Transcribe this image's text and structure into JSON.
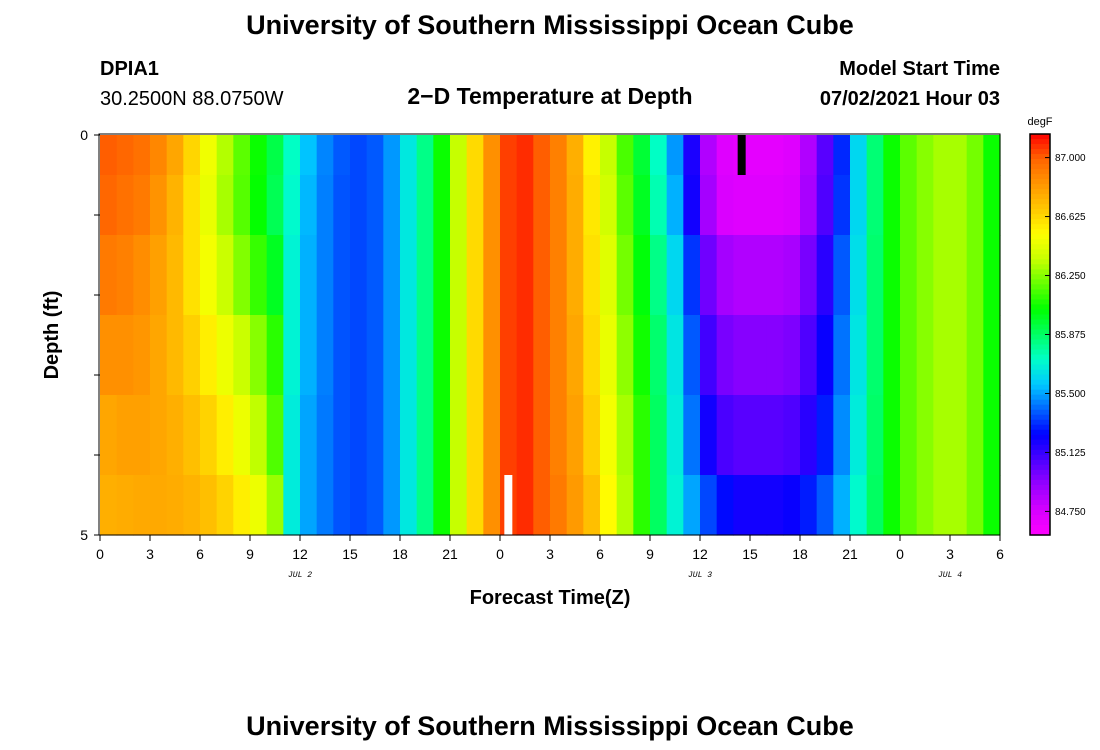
{
  "header": {
    "title": "University of Southern Mississippi Ocean Cube",
    "station_id": "DPIA1",
    "coordinates": "30.2500N  88.0750W",
    "subtitle": "2−D Temperature at Depth",
    "model_label": "Model Start Time",
    "model_time": "07/02/2021 Hour 03"
  },
  "footer": {
    "title": "University of Southern Mississippi Ocean Cube"
  },
  "chart_data": {
    "type": "heatmap",
    "title": "2−D Temperature at Depth",
    "xlabel": "Forecast Time(Z)",
    "ylabel": "Depth (ft)",
    "x_ticks": [
      "0",
      "3",
      "6",
      "9",
      "12",
      "15",
      "18",
      "21",
      "0",
      "3",
      "6",
      "9",
      "12",
      "15",
      "18",
      "21",
      "0",
      "3",
      "6"
    ],
    "day_labels": [
      {
        "label": "JUL 2",
        "hour_index": 12
      },
      {
        "label": "JUL 3",
        "hour_index": 36
      },
      {
        "label": "JUL 4",
        "hour_index": 51
      }
    ],
    "y_ticks": [
      "0",
      "5"
    ],
    "ylim": [
      0,
      5
    ],
    "depth_levels_ft": [
      0.25,
      0.75,
      1.75,
      2.75,
      3.75,
      4.75
    ],
    "forecast_hours": 54,
    "colorbar": {
      "unit": "degF",
      "labels": [
        "87.000",
        "86.625",
        "86.250",
        "85.875",
        "85.500",
        "85.125",
        "84.750"
      ],
      "vmin": 84.6,
      "vmax": 87.15,
      "colors": [
        "#ff00ff",
        "#d500ff",
        "#9600ff",
        "#4b00ff",
        "#0000ff",
        "#0064ff",
        "#00c8ff",
        "#00ffc8",
        "#00ff64",
        "#00ff00",
        "#64ff00",
        "#c8ff00",
        "#ffff00",
        "#ffc800",
        "#ff9600",
        "#ff6400",
        "#ff0000"
      ]
    },
    "series": [
      {
        "values": [
          87.0,
          86.98,
          86.95,
          86.88,
          86.78,
          86.63,
          86.47,
          86.32,
          86.18,
          86.05,
          85.92,
          85.72,
          85.55,
          85.45,
          85.38,
          85.35,
          85.38,
          85.48,
          85.65,
          85.82,
          86.05,
          86.35,
          86.62,
          86.85,
          87.05,
          87.08,
          87.0,
          86.9,
          86.75,
          86.55,
          86.35,
          86.15,
          85.95,
          85.72,
          85.48,
          85.18,
          84.85,
          84.72,
          84.7,
          84.7,
          84.7,
          84.72,
          84.85,
          85.05,
          85.3,
          85.6,
          85.85,
          86.05,
          86.18,
          86.25,
          86.3,
          86.3,
          86.22,
          86.05
        ]
      },
      {
        "values": [
          86.98,
          86.95,
          86.92,
          86.84,
          86.74,
          86.6,
          86.45,
          86.3,
          86.17,
          86.04,
          85.9,
          85.7,
          85.53,
          85.44,
          85.37,
          85.35,
          85.38,
          85.48,
          85.65,
          85.82,
          86.05,
          86.35,
          86.62,
          86.85,
          87.05,
          87.08,
          87.0,
          86.9,
          86.76,
          86.58,
          86.38,
          86.18,
          85.98,
          85.75,
          85.52,
          85.2,
          84.88,
          84.74,
          84.72,
          84.72,
          84.72,
          84.74,
          84.87,
          85.07,
          85.32,
          85.6,
          85.85,
          86.05,
          86.18,
          86.25,
          86.3,
          86.3,
          86.22,
          86.05
        ]
      },
      {
        "values": [
          86.92,
          86.9,
          86.86,
          86.8,
          86.72,
          86.6,
          86.48,
          86.36,
          86.24,
          86.12,
          85.98,
          85.68,
          85.52,
          85.44,
          85.37,
          85.35,
          85.38,
          85.48,
          85.65,
          85.82,
          86.05,
          86.35,
          86.62,
          86.85,
          87.05,
          87.08,
          87.0,
          86.9,
          86.76,
          86.6,
          86.42,
          86.22,
          86.02,
          85.82,
          85.6,
          85.32,
          85.0,
          84.88,
          84.85,
          84.85,
          84.85,
          84.87,
          84.98,
          85.15,
          85.38,
          85.62,
          85.86,
          86.05,
          86.18,
          86.25,
          86.3,
          86.3,
          86.22,
          86.05
        ]
      },
      {
        "values": [
          86.85,
          86.85,
          86.83,
          86.78,
          86.72,
          86.65,
          86.56,
          86.46,
          86.36,
          86.25,
          86.1,
          85.68,
          85.52,
          85.44,
          85.37,
          85.35,
          85.38,
          85.48,
          85.65,
          85.82,
          86.05,
          86.35,
          86.62,
          86.85,
          87.05,
          87.08,
          87.0,
          86.9,
          86.78,
          86.62,
          86.45,
          86.26,
          86.06,
          85.86,
          85.64,
          85.38,
          85.1,
          84.98,
          84.95,
          84.95,
          84.95,
          84.97,
          85.07,
          85.22,
          85.42,
          85.64,
          85.86,
          86.05,
          86.18,
          86.25,
          86.3,
          86.3,
          86.22,
          86.05
        ]
      },
      {
        "values": [
          86.78,
          86.8,
          86.8,
          86.78,
          86.75,
          86.7,
          86.64,
          86.56,
          86.46,
          86.34,
          86.16,
          85.66,
          85.5,
          85.43,
          85.37,
          85.35,
          85.38,
          85.48,
          85.65,
          85.82,
          86.05,
          86.35,
          86.62,
          86.85,
          87.05,
          87.08,
          87.0,
          86.9,
          86.8,
          86.65,
          86.48,
          86.3,
          86.1,
          85.88,
          85.66,
          85.42,
          85.2,
          85.08,
          85.05,
          85.05,
          85.05,
          85.07,
          85.15,
          85.28,
          85.46,
          85.66,
          85.87,
          86.05,
          86.18,
          86.25,
          86.3,
          86.3,
          86.22,
          86.05
        ]
      },
      {
        "values": [
          86.75,
          86.76,
          86.77,
          86.77,
          86.76,
          86.74,
          86.7,
          86.64,
          86.56,
          86.46,
          86.28,
          85.66,
          85.5,
          85.43,
          85.37,
          85.35,
          85.38,
          85.48,
          85.65,
          85.82,
          86.05,
          86.35,
          86.62,
          86.85,
          87.05,
          87.08,
          87.0,
          86.92,
          86.82,
          86.7,
          86.52,
          86.32,
          86.1,
          85.88,
          85.68,
          85.5,
          85.35,
          85.25,
          85.2,
          85.2,
          85.2,
          85.22,
          85.28,
          85.38,
          85.52,
          85.7,
          85.88,
          86.05,
          86.18,
          86.25,
          86.3,
          86.3,
          86.22,
          86.05
        ]
      }
    ],
    "markers": [
      {
        "type": "black-bar",
        "hour_index": 38,
        "depth_ft": 0.25
      },
      {
        "type": "white-bar",
        "hour_index": 24,
        "depth_ft": 4.75
      }
    ]
  }
}
